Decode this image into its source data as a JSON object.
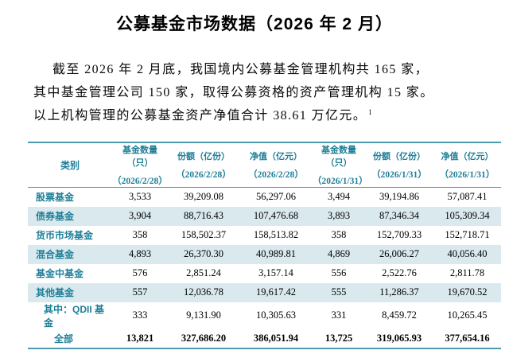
{
  "document": {
    "title": "公募基金市场数据（2026 年 2 月）",
    "intro": {
      "lines": [
        "截至 2026 年 2 月底，我国境内公募基金管理机构共 165 家，",
        "其中基金管理公司 150 家，取得公募资格的资产管理机构 15 家。",
        "以上机构管理的公募基金资产净值合计 38.61 万亿元。"
      ],
      "footnote_marker": "1"
    }
  },
  "table": {
    "category_header": "类别",
    "columns": [
      {
        "label": "基金数量（只）",
        "date": "（2026/2/28）"
      },
      {
        "label": "份额（亿份）",
        "date": "（2026/2/28）"
      },
      {
        "label": "净值（亿元）",
        "date": "（2026/2/28）"
      },
      {
        "label": "基金数量（只）",
        "date": "（2026/1/31）"
      },
      {
        "label": "份额（亿份）",
        "date": "（2026/1/31）"
      },
      {
        "label": "净值（亿元）",
        "date": "（2026/1/31）"
      }
    ],
    "rows": [
      {
        "category": "股票基金",
        "values": [
          "3,533",
          "39,209.08",
          "56,297.06",
          "3,494",
          "39,194.86",
          "57,087.41"
        ],
        "shaded": false,
        "indent": 0,
        "bold": false
      },
      {
        "category": "债券基金",
        "values": [
          "3,904",
          "88,716.43",
          "107,476.68",
          "3,893",
          "87,346.34",
          "105,309.34"
        ],
        "shaded": true,
        "indent": 0,
        "bold": false
      },
      {
        "category": "货币市场基金",
        "values": [
          "358",
          "158,502.37",
          "158,513.82",
          "358",
          "152,709.33",
          "152,718.71"
        ],
        "shaded": false,
        "indent": 0,
        "bold": false
      },
      {
        "category": "混合基金",
        "values": [
          "4,893",
          "26,370.30",
          "40,989.81",
          "4,869",
          "26,006.27",
          "40,056.40"
        ],
        "shaded": true,
        "indent": 0,
        "bold": false
      },
      {
        "category": "基金中基金",
        "values": [
          "576",
          "2,851.24",
          "3,157.14",
          "556",
          "2,522.76",
          "2,811.78"
        ],
        "shaded": false,
        "indent": 0,
        "bold": false
      },
      {
        "category": "其他基金",
        "values": [
          "557",
          "12,036.78",
          "19,617.42",
          "555",
          "11,286.37",
          "19,670.52"
        ],
        "shaded": true,
        "indent": 0,
        "bold": false
      },
      {
        "category": "其中：QDII 基金",
        "values": [
          "333",
          "9,131.90",
          "10,305.63",
          "331",
          "8,459.72",
          "10,265.45"
        ],
        "shaded": false,
        "indent": 1,
        "bold": false
      },
      {
        "category": "全部",
        "values": [
          "13,821",
          "327,686.20",
          "386,051.94",
          "13,725",
          "319,065.93",
          "377,654.16"
        ],
        "shaded": false,
        "indent": 2,
        "bold": true
      }
    ]
  },
  "colors": {
    "accent_teal_text": "#1e7f98",
    "table_border": "#4d9ab2",
    "shaded_row_bg": "#d9e9ee",
    "text": "#000000",
    "background": "#ffffff"
  }
}
